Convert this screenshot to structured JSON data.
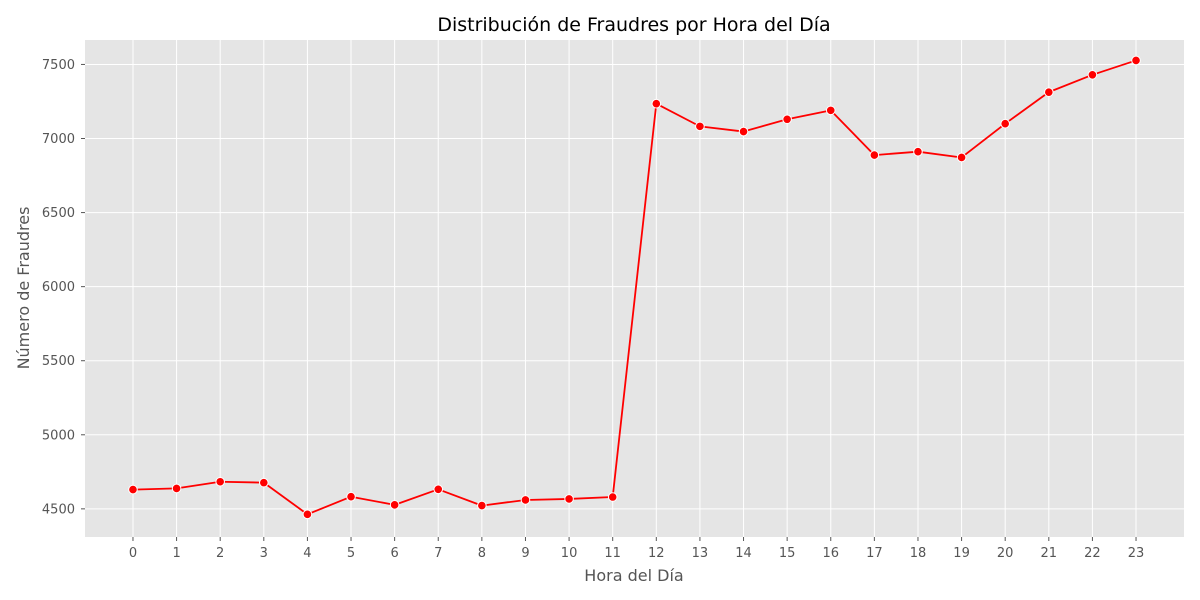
{
  "chart_data": {
    "type": "line",
    "title": "Distribución de Fraudres por Hora del Día",
    "xlabel": "Hora del Día",
    "ylabel": "Número de Fraudres",
    "x": [
      0,
      1,
      2,
      3,
      4,
      5,
      6,
      7,
      8,
      9,
      10,
      11,
      12,
      13,
      14,
      15,
      16,
      17,
      18,
      19,
      20,
      21,
      22,
      23
    ],
    "x_tick_labels": [
      "0",
      "1",
      "2",
      "3",
      "4",
      "5",
      "6",
      "7",
      "8",
      "9",
      "10",
      "11",
      "12",
      "13",
      "14",
      "15",
      "16",
      "17",
      "18",
      "19",
      "20",
      "21",
      "22",
      "23"
    ],
    "y_ticks": [
      4500,
      5000,
      5500,
      6000,
      6500,
      7000,
      7500
    ],
    "y_tick_labels": [
      "4500",
      "5000",
      "5500",
      "6000",
      "6500",
      "7000",
      "7500"
    ],
    "xlim": [
      -1.1,
      24.1
    ],
    "ylim": [
      4310,
      7665
    ],
    "grid": true,
    "series": [
      {
        "values": [
          4630,
          4638,
          4683,
          4677,
          4463,
          4582,
          4527,
          4632,
          4522,
          4560,
          4567,
          4580,
          7235,
          7082,
          7047,
          7130,
          7190,
          6888,
          6911,
          6872,
          7100,
          7313,
          7430,
          7527
        ],
        "color": "#ff0000",
        "marker": "circle"
      }
    ],
    "colors": {
      "plot_background": "#e5e5e5",
      "grid": "#ffffff",
      "line": "#ff0000",
      "marker_edge": "#ffffff"
    }
  }
}
